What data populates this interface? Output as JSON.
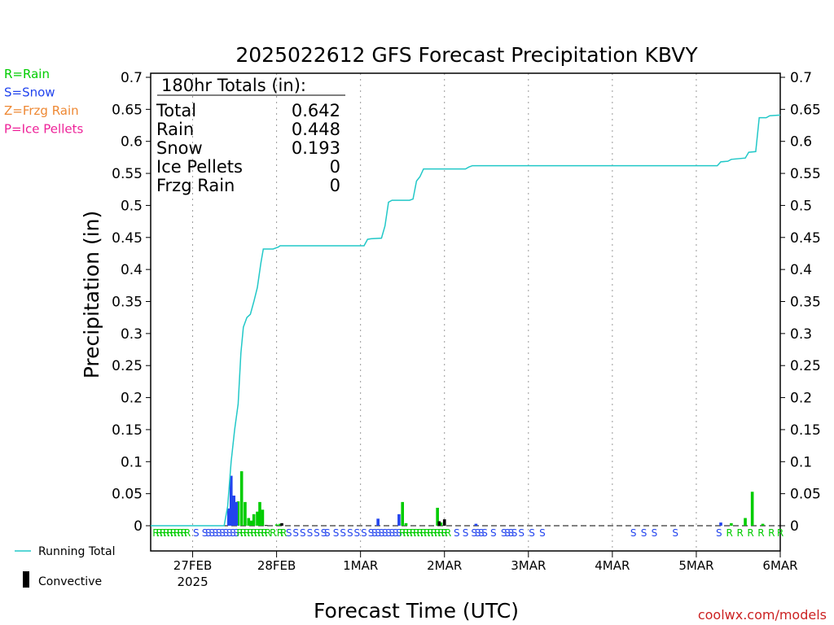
{
  "colors": {
    "rain": "#00cc00",
    "snow": "#2244ee",
    "frzg": "#ee8833",
    "ice": "#ee2299",
    "total": "#22c8c8",
    "convective": "#000000",
    "credit": "#cc2222"
  },
  "legend_left": [
    {
      "label": "R=Rain",
      "color": "#00cc00"
    },
    {
      "label": "S=Snow",
      "color": "#2244ee"
    },
    {
      "label": "Z=Frzg Rain",
      "color": "#ee8833"
    },
    {
      "label": "P=Ice Pellets",
      "color": "#ee2299"
    }
  ],
  "legend_bottom": {
    "running_total": "Running Total",
    "convective": "Convective"
  },
  "credit": "coolwx.com/models",
  "chart_data": {
    "type": "bar",
    "title": "2025022612 GFS Forecast Precipitation KBVY",
    "xlabel": "Forecast Time (UTC)",
    "ylabel": "Precipitation (in)",
    "ylim": [
      0,
      0.7
    ],
    "yticks": [
      "0",
      "0.05",
      "0.1",
      "0.15",
      "0.2",
      "0.25",
      "0.3",
      "0.35",
      "0.4",
      "0.45",
      "0.5",
      "0.55",
      "0.6",
      "0.65",
      "0.7"
    ],
    "xlim_hours": [
      0,
      180
    ],
    "xticks": [
      {
        "h": 12,
        "label": "27FEB",
        "sub": "2025"
      },
      {
        "h": 36,
        "label": "28FEB",
        "sub": ""
      },
      {
        "h": 60,
        "label": "1MAR",
        "sub": ""
      },
      {
        "h": 84,
        "label": "2MAR",
        "sub": ""
      },
      {
        "h": 108,
        "label": "3MAR",
        "sub": ""
      },
      {
        "h": 132,
        "label": "4MAR",
        "sub": ""
      },
      {
        "h": 156,
        "label": "5MAR",
        "sub": ""
      },
      {
        "h": 180,
        "label": "6MAR",
        "sub": ""
      }
    ],
    "totals_box": {
      "header": "180hr Totals (in):",
      "rows": [
        {
          "label": "Total",
          "value": "0.642"
        },
        {
          "label": "Rain",
          "value": "0.448"
        },
        {
          "label": "Snow",
          "value": "0.193"
        },
        {
          "label": "Ice Pellets",
          "value": "0"
        },
        {
          "label": "Frzg Rain",
          "value": "0"
        }
      ]
    },
    "running_total": [
      [
        0,
        0
      ],
      [
        21,
        0
      ],
      [
        22,
        0.03
      ],
      [
        23,
        0.1
      ],
      [
        24,
        0.15
      ],
      [
        25,
        0.19
      ],
      [
        25.8,
        0.27
      ],
      [
        26.5,
        0.31
      ],
      [
        27.5,
        0.325
      ],
      [
        28.5,
        0.33
      ],
      [
        29.5,
        0.35
      ],
      [
        30.5,
        0.372
      ],
      [
        31.5,
        0.41
      ],
      [
        32.2,
        0.432
      ],
      [
        35,
        0.432
      ],
      [
        36.5,
        0.435
      ],
      [
        37,
        0.437
      ],
      [
        61,
        0.437
      ],
      [
        62,
        0.447
      ],
      [
        63,
        0.448
      ],
      [
        66,
        0.449
      ],
      [
        67,
        0.468
      ],
      [
        68,
        0.505
      ],
      [
        69,
        0.508
      ],
      [
        74,
        0.508
      ],
      [
        75,
        0.51
      ],
      [
        76,
        0.538
      ],
      [
        77,
        0.545
      ],
      [
        78,
        0.557
      ],
      [
        90,
        0.557
      ],
      [
        91,
        0.56
      ],
      [
        92,
        0.562
      ],
      [
        162,
        0.562
      ],
      [
        163,
        0.568
      ],
      [
        165,
        0.569
      ],
      [
        166,
        0.572
      ],
      [
        170,
        0.574
      ],
      [
        171,
        0.583
      ],
      [
        173,
        0.584
      ],
      [
        174,
        0.637
      ],
      [
        176,
        0.637
      ],
      [
        177,
        0.64
      ],
      [
        180,
        0.641
      ]
    ],
    "series": [
      {
        "name": "Rain",
        "color": "#00cc00",
        "points": [
          [
            25,
            0.038
          ],
          [
            26,
            0.085
          ],
          [
            27,
            0.037
          ],
          [
            28,
            0.012
          ],
          [
            28.8,
            0.008
          ],
          [
            29.5,
            0.018
          ],
          [
            30.5,
            0.022
          ],
          [
            31.2,
            0.037
          ],
          [
            32,
            0.025
          ],
          [
            36,
            0.002
          ],
          [
            37,
            0.003
          ],
          [
            72,
            0.037
          ],
          [
            73,
            0.004
          ],
          [
            82,
            0.028
          ],
          [
            83,
            0.005
          ],
          [
            166,
            0.004
          ],
          [
            170,
            0.012
          ],
          [
            172,
            0.053
          ],
          [
            175,
            0.003
          ]
        ]
      },
      {
        "name": "Snow",
        "color": "#2244ee",
        "points": [
          [
            22.3,
            0.027
          ],
          [
            23,
            0.078
          ],
          [
            23.8,
            0.047
          ],
          [
            24.5,
            0.037
          ],
          [
            65,
            0.011
          ],
          [
            71,
            0.018
          ],
          [
            93,
            0.003
          ],
          [
            163,
            0.005
          ]
        ]
      },
      {
        "name": "Convective",
        "color": "#000000",
        "points": [
          [
            33,
            0.001
          ],
          [
            37.5,
            0.004
          ],
          [
            82.5,
            0.007
          ],
          [
            84,
            0.01
          ]
        ]
      }
    ],
    "ptype_strip": [
      {
        "h": 1.5,
        "t": "R"
      },
      {
        "h": 2.5,
        "t": "R"
      },
      {
        "h": 3.5,
        "t": "R"
      },
      {
        "h": 4.5,
        "t": "R"
      },
      {
        "h": 5.5,
        "t": "R"
      },
      {
        "h": 6.5,
        "t": "R"
      },
      {
        "h": 7.5,
        "t": "R"
      },
      {
        "h": 8.5,
        "t": "R"
      },
      {
        "h": 9.5,
        "t": "R"
      },
      {
        "h": 10.5,
        "t": "R"
      },
      {
        "h": 13,
        "t": "S"
      },
      {
        "h": 15.5,
        "t": "S"
      },
      {
        "h": 16.5,
        "t": "S"
      },
      {
        "h": 17.5,
        "t": "S"
      },
      {
        "h": 18.5,
        "t": "S"
      },
      {
        "h": 19.5,
        "t": "S"
      },
      {
        "h": 20.5,
        "t": "S"
      },
      {
        "h": 21.5,
        "t": "S"
      },
      {
        "h": 22.5,
        "t": "S"
      },
      {
        "h": 23.5,
        "t": "S"
      },
      {
        "h": 24.5,
        "t": "S"
      },
      {
        "h": 25.5,
        "t": "R"
      },
      {
        "h": 26.5,
        "t": "R"
      },
      {
        "h": 27.5,
        "t": "R"
      },
      {
        "h": 28.5,
        "t": "R"
      },
      {
        "h": 29.5,
        "t": "R"
      },
      {
        "h": 30.5,
        "t": "R"
      },
      {
        "h": 31.5,
        "t": "R"
      },
      {
        "h": 32.5,
        "t": "R"
      },
      {
        "h": 33.5,
        "t": "R"
      },
      {
        "h": 35,
        "t": "R"
      },
      {
        "h": 37,
        "t": "R"
      },
      {
        "h": 38,
        "t": "R"
      },
      {
        "h": 39.5,
        "t": "S"
      },
      {
        "h": 41.5,
        "t": "S"
      },
      {
        "h": 43.5,
        "t": "S"
      },
      {
        "h": 45.5,
        "t": "S"
      },
      {
        "h": 47.5,
        "t": "S"
      },
      {
        "h": 49.5,
        "t": "S"
      },
      {
        "h": 50.5,
        "t": "S"
      },
      {
        "h": 53,
        "t": "S"
      },
      {
        "h": 55,
        "t": "S"
      },
      {
        "h": 57,
        "t": "S"
      },
      {
        "h": 59,
        "t": "S"
      },
      {
        "h": 61,
        "t": "S"
      },
      {
        "h": 63,
        "t": "S"
      },
      {
        "h": 64,
        "t": "S"
      },
      {
        "h": 65,
        "t": "S"
      },
      {
        "h": 66,
        "t": "S"
      },
      {
        "h": 67,
        "t": "S"
      },
      {
        "h": 68,
        "t": "S"
      },
      {
        "h": 69,
        "t": "S"
      },
      {
        "h": 70,
        "t": "S"
      },
      {
        "h": 71,
        "t": "S"
      },
      {
        "h": 72,
        "t": "R"
      },
      {
        "h": 73,
        "t": "R"
      },
      {
        "h": 74,
        "t": "R"
      },
      {
        "h": 75,
        "t": "R"
      },
      {
        "h": 76,
        "t": "R"
      },
      {
        "h": 77,
        "t": "R"
      },
      {
        "h": 78,
        "t": "R"
      },
      {
        "h": 79,
        "t": "R"
      },
      {
        "h": 80,
        "t": "R"
      },
      {
        "h": 81,
        "t": "R"
      },
      {
        "h": 82,
        "t": "R"
      },
      {
        "h": 83,
        "t": "R"
      },
      {
        "h": 84,
        "t": "R"
      },
      {
        "h": 85,
        "t": "R"
      },
      {
        "h": 87.5,
        "t": "S"
      },
      {
        "h": 90,
        "t": "S"
      },
      {
        "h": 92.5,
        "t": "S"
      },
      {
        "h": 93.5,
        "t": "S"
      },
      {
        "h": 94.5,
        "t": "S"
      },
      {
        "h": 95.5,
        "t": "S"
      },
      {
        "h": 98,
        "t": "S"
      },
      {
        "h": 101,
        "t": "S"
      },
      {
        "h": 102,
        "t": "S"
      },
      {
        "h": 103,
        "t": "S"
      },
      {
        "h": 104,
        "t": "S"
      },
      {
        "h": 106,
        "t": "S"
      },
      {
        "h": 109,
        "t": "S"
      },
      {
        "h": 112,
        "t": "S"
      },
      {
        "h": 138,
        "t": "S"
      },
      {
        "h": 141,
        "t": "S"
      },
      {
        "h": 144,
        "t": "S"
      },
      {
        "h": 150,
        "t": "S"
      },
      {
        "h": 162.5,
        "t": "S"
      },
      {
        "h": 165.5,
        "t": "R"
      },
      {
        "h": 168.5,
        "t": "R"
      },
      {
        "h": 171.5,
        "t": "R"
      },
      {
        "h": 174.5,
        "t": "R"
      },
      {
        "h": 177.5,
        "t": "R"
      },
      {
        "h": 180,
        "t": "R"
      }
    ]
  }
}
